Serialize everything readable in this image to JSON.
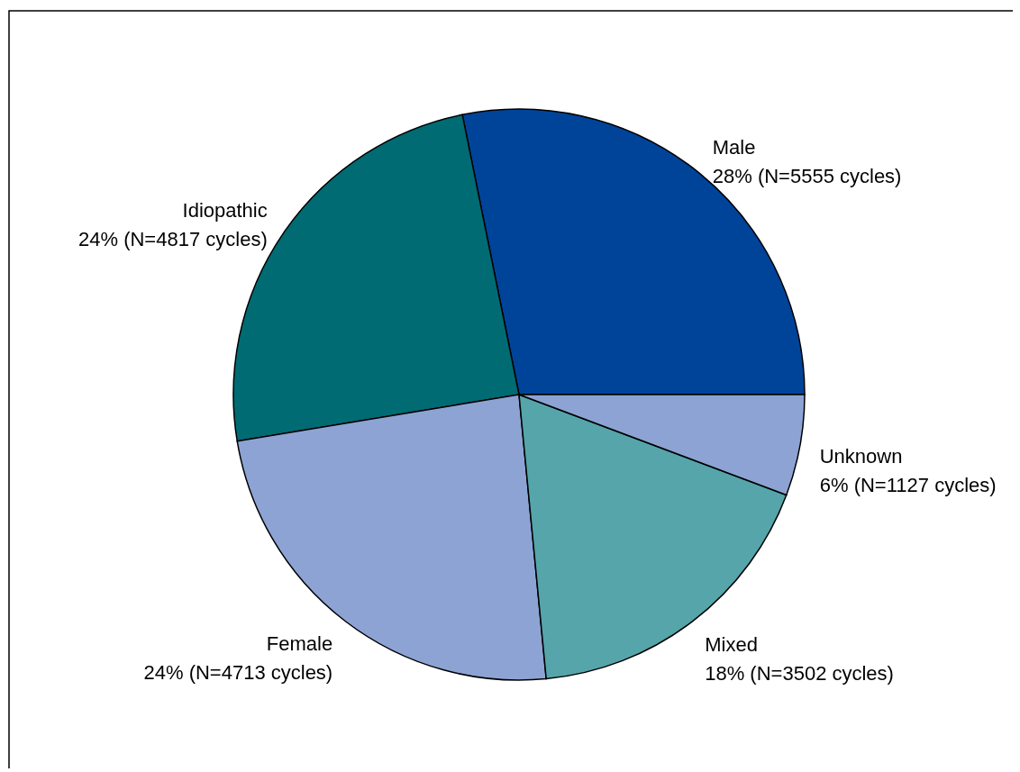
{
  "chart_data": {
    "type": "pie",
    "categories": [
      "Male",
      "Idiopathic",
      "Female",
      "Mixed",
      "Unknown"
    ],
    "values": [
      5555,
      4817,
      4713,
      3502,
      1127
    ],
    "colors": [
      "#00449a",
      "#006b73",
      "#8ca3d4",
      "#55a5ab",
      "#8ca3d4"
    ],
    "value_labels": [
      "28% (N=5555 cycles)",
      "24% (N=4817 cycles)",
      "24% (N=4713 cycles)",
      "18% (N=3502 cycles)",
      "6% (N=1127 cycles)"
    ]
  }
}
